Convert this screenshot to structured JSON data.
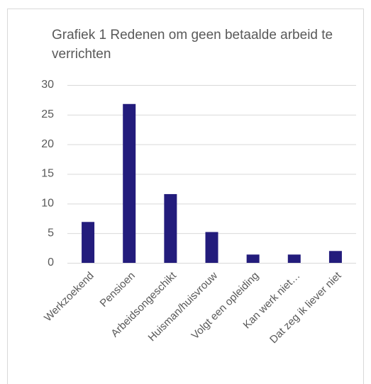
{
  "chart_data": {
    "type": "bar",
    "title": "Grafiek 1 Redenen om geen betaalde arbeid te verrichten",
    "categories": [
      "Werkzoekend",
      "Pensioen",
      "Arbeidsongeschikt",
      "Huisman/huisvrouw",
      "Volgt een opleiding",
      "Kan werk niet…",
      "Dat zeg ik liever niet"
    ],
    "values": [
      6.9,
      26.8,
      11.6,
      5.2,
      1.4,
      1.4,
      2.0
    ],
    "color": "#231c7c",
    "ylim": [
      0,
      30
    ],
    "yticks": [
      0,
      5,
      10,
      15,
      20,
      25,
      30
    ],
    "grid": true
  }
}
